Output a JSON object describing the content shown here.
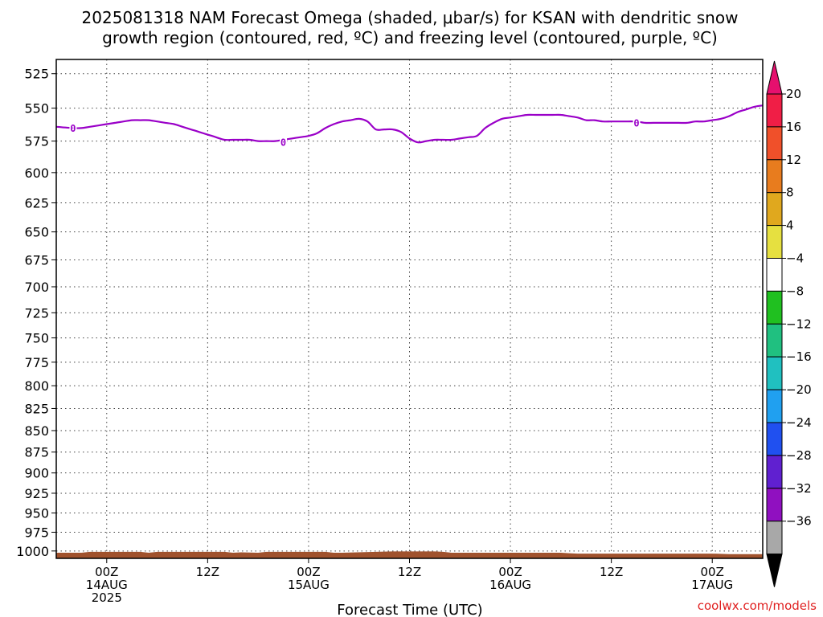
{
  "chart_data": {
    "type": "line",
    "title_lines": [
      "2025081318 NAM Forecast Omega (shaded, μbar/s) for KSAN with dendritic snow",
      "growth region (contoured, red, ºC) and freezing level (contoured, purple, ºC)"
    ],
    "xlabel": "Forecast Time (UTC)",
    "ylabel": "",
    "credit": "coolwx.com/models",
    "y_axis": {
      "scale": "pressure-log",
      "inverted": true,
      "range": [
        515,
        1010
      ],
      "ticks": [
        525,
        550,
        575,
        600,
        625,
        650,
        675,
        700,
        725,
        750,
        775,
        800,
        825,
        850,
        875,
        900,
        925,
        950,
        975,
        1000
      ]
    },
    "x_axis": {
      "units": "forecast hour",
      "range": [
        0,
        84
      ],
      "ticks": [
        {
          "hour": 6,
          "lines": [
            "00Z",
            "14AUG",
            "2025"
          ]
        },
        {
          "hour": 18,
          "lines": [
            "12Z"
          ]
        },
        {
          "hour": 30,
          "lines": [
            "00Z",
            "15AUG"
          ]
        },
        {
          "hour": 42,
          "lines": [
            "12Z"
          ]
        },
        {
          "hour": 54,
          "lines": [
            "00Z",
            "16AUG"
          ]
        },
        {
          "hour": 66,
          "lines": [
            "12Z"
          ]
        },
        {
          "hour": 78,
          "lines": [
            "00Z",
            "17AUG"
          ]
        }
      ]
    },
    "grid": true,
    "series": [
      {
        "name": "",
        "contour_value": "0",
        "color": "#9a00c8",
        "x": [
          0,
          2,
          3,
          4,
          6,
          7,
          8,
          9,
          10,
          11,
          12,
          13,
          14,
          15,
          16,
          17,
          18,
          19,
          20,
          21,
          22,
          23,
          24,
          25,
          26,
          27,
          28,
          29,
          30,
          31,
          32,
          33,
          34,
          35,
          36,
          37,
          38,
          39,
          40,
          41,
          42,
          43,
          44,
          45,
          46,
          47,
          48,
          49,
          50,
          51,
          52,
          53,
          54,
          55,
          56,
          57,
          58,
          59,
          60,
          61,
          62,
          63,
          64,
          65,
          66,
          67,
          68,
          69,
          70,
          71,
          72,
          73,
          74,
          75,
          76,
          77,
          78,
          79,
          80,
          81,
          82,
          83,
          84
        ],
        "y": [
          564,
          565,
          565,
          564,
          562,
          561,
          560,
          559,
          559,
          559,
          560,
          561,
          562,
          564,
          566,
          568,
          570,
          572,
          574,
          574,
          574,
          574,
          575,
          575,
          575,
          574,
          573,
          572,
          571,
          569,
          565,
          562,
          560,
          559,
          558,
          560,
          566,
          566,
          566,
          568,
          573,
          576,
          575,
          574,
          574,
          574,
          573,
          572,
          571,
          565,
          561,
          558,
          557,
          556,
          555,
          555,
          555,
          555,
          555,
          556,
          557,
          559,
          559,
          560,
          560,
          560,
          560,
          560,
          561,
          561,
          561,
          561,
          561,
          561,
          560,
          560,
          559,
          558,
          556,
          553,
          551,
          549,
          548
        ]
      }
    ],
    "contour_labels": [
      {
        "x": 2,
        "y": 565,
        "text": "0"
      },
      {
        "x": 27,
        "y": 576,
        "text": "0"
      },
      {
        "x": 69,
        "y": 561,
        "text": "0"
      }
    ],
    "surface": {
      "color": "#a0522d",
      "x": [
        0,
        3,
        4,
        10,
        11,
        12,
        20,
        21,
        22,
        24,
        25,
        26,
        32,
        33,
        34,
        38,
        40,
        45,
        46,
        47,
        60,
        61,
        62,
        78,
        80,
        83,
        84
      ],
      "y": [
        1002.4,
        1002.4,
        1001.2,
        1001.2,
        1002.4,
        1001.2,
        1001.2,
        1002.4,
        1001.8,
        1002.4,
        1001.2,
        1001.2,
        1001.2,
        1002.4,
        1002.4,
        1001.2,
        1000.6,
        1000.6,
        1001.2,
        1002.4,
        1002.4,
        1003.0,
        1003.6,
        1003.6,
        1004.2,
        1004.2,
        1004.2
      ]
    },
    "colorbar": {
      "labels": [
        "20",
        "16",
        "12",
        "8",
        "4",
        "−4",
        "−8",
        "−12",
        "−16",
        "−20",
        "−24",
        "−28",
        "−32",
        "−36"
      ],
      "colors": [
        "#f01e46",
        "#f0502a",
        "#e87c1e",
        "#e0a81e",
        "#e6e040",
        "#ffffff",
        "#20c020",
        "#20c080",
        "#20c0c0",
        "#20a0f0",
        "#2050f0",
        "#6020d0",
        "#9010c0",
        "#a8a8a8"
      ],
      "top_arrow_color": "#e6106e",
      "bottom_arrow_color": "#000000"
    }
  }
}
